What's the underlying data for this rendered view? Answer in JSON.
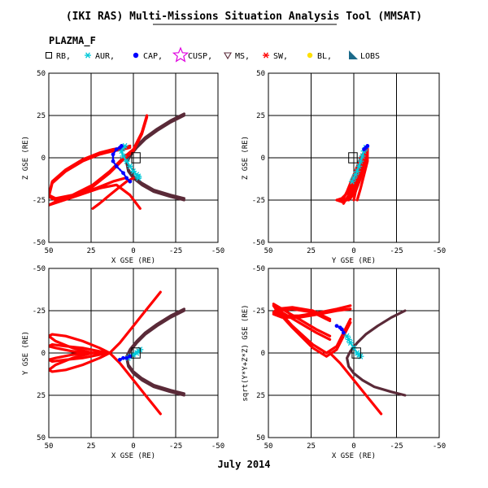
{
  "header": {
    "title": "(IKI RAS) Multi-Missions Situation Analysis Tool (MMSAT)",
    "mission": "PLAZMA_F",
    "date": "July 2014"
  },
  "legend": [
    {
      "label": "RB,",
      "marker": "square",
      "color": "#000000"
    },
    {
      "label": "AUR,",
      "marker": "asterisk",
      "color": "#00c8d8"
    },
    {
      "label": "CAP,",
      "marker": "dot",
      "color": "#0000ff"
    },
    {
      "label": "CUSP,",
      "marker": "star",
      "color": "#e000e0"
    },
    {
      "label": "MS,",
      "marker": "triangle-down",
      "color": "#5a2a38"
    },
    {
      "label": "SW,",
      "marker": "asterisk",
      "color": "#ff0000"
    },
    {
      "label": "BL,",
      "marker": "dot",
      "color": "#ffe000"
    },
    {
      "label": "LOBS",
      "marker": "triangle",
      "color": "#1a6a8a"
    }
  ],
  "chart_data": [
    {
      "type": "scatter",
      "xlabel": "X GSE (RE)",
      "ylabel": "Z GSE (RE)",
      "xlim": [
        50,
        -50
      ],
      "ylim": [
        -50,
        50
      ],
      "xticks": [
        "50",
        "25",
        "0",
        "-25",
        "-50"
      ],
      "yticks": [
        "-50",
        "-25",
        "0",
        "25",
        "50"
      ],
      "grid": true,
      "series": [
        {
          "region": "MS",
          "color": "#5a2a38",
          "x": [
            -30,
            -22,
            -14,
            -7,
            -2,
            2,
            4,
            3,
            0,
            -5,
            -12,
            -22,
            -30
          ],
          "y": [
            25,
            21,
            16,
            11,
            6,
            1,
            -3,
            -8,
            -12,
            -16,
            -20,
            -23,
            -25
          ]
        },
        {
          "region": "MS",
          "color": "#5a2a38",
          "x": [
            -30,
            -22,
            -14,
            -7,
            -2,
            2,
            4,
            3,
            0,
            -5,
            -12,
            -22,
            -30
          ],
          "y": [
            26,
            22,
            17,
            12,
            7,
            2,
            -2,
            -7,
            -11,
            -15,
            -19,
            -22,
            -24
          ]
        },
        {
          "region": "SW",
          "color": "#ff0000",
          "x": [
            2,
            6,
            12,
            20,
            30,
            40,
            48,
            50,
            46,
            36,
            24,
            14,
            6,
            0,
            -5,
            -8
          ],
          "y": [
            7,
            6,
            5,
            3,
            -1,
            -7,
            -14,
            -22,
            -24,
            -22,
            -16,
            -8,
            0,
            5,
            15,
            25
          ]
        },
        {
          "region": "SW",
          "color": "#ff0000",
          "x": [
            2,
            6,
            12,
            20,
            30,
            40,
            48,
            50,
            46,
            36,
            24,
            14,
            6,
            0,
            -5,
            -8
          ],
          "y": [
            6,
            5,
            4,
            2,
            -2,
            -8,
            -15,
            -23,
            -25,
            -23,
            -17,
            -9,
            -1,
            4,
            14,
            24
          ]
        },
        {
          "region": "SW",
          "color": "#ff0000",
          "x": [
            5,
            12,
            22,
            34,
            46,
            50,
            44,
            32,
            20,
            10,
            2,
            -4
          ],
          "y": [
            -12,
            -14,
            -18,
            -22,
            -26,
            -28,
            -26,
            -22,
            -18,
            -16,
            -22,
            -30
          ]
        },
        {
          "region": "SW",
          "color": "#ff0000",
          "x": [
            0,
            4,
            9,
            14,
            20,
            24
          ],
          "y": [
            -12,
            -14,
            -18,
            -22,
            -27,
            -30
          ]
        },
        {
          "region": "AUR",
          "color": "#00c8d8",
          "x": [
            5,
            6,
            7,
            6,
            4,
            2,
            0,
            -2,
            -3,
            -3
          ],
          "y": [
            7,
            6,
            4,
            1,
            -2,
            -5,
            -8,
            -10,
            -11,
            -12
          ]
        },
        {
          "region": "CAP",
          "color": "#0000ff",
          "x": [
            7,
            8,
            10,
            12,
            12,
            10,
            6,
            4,
            2
          ],
          "y": [
            7,
            6,
            5,
            2,
            -2,
            -5,
            -9,
            -12,
            -14
          ]
        }
      ],
      "rb_box": {
        "x": [
          -4,
          1
        ],
        "y": [
          -3,
          3
        ]
      }
    },
    {
      "type": "scatter",
      "xlabel": "Y GSE (RE)",
      "ylabel": "Z GSE (RE)",
      "xlim": [
        50,
        -50
      ],
      "ylim": [
        -50,
        50
      ],
      "xticks": [
        "50",
        "25",
        "0",
        "-25",
        "-50"
      ],
      "yticks": [
        "-50",
        "-25",
        "0",
        "25",
        "50"
      ],
      "grid": true,
      "series": [
        {
          "region": "SW",
          "color": "#ff0000",
          "x": [
            10,
            7,
            3,
            -1,
            -5,
            -7,
            -8,
            -7,
            -4,
            0,
            4,
            7,
            10
          ],
          "y": [
            -25,
            -24,
            -20,
            -13,
            -5,
            2,
            7,
            5,
            0,
            -10,
            -20,
            -26,
            -25
          ]
        },
        {
          "region": "SW",
          "color": "#ff0000",
          "x": [
            7,
            4,
            0,
            -3,
            -6,
            -8,
            -8,
            -6,
            -3,
            0,
            3,
            6
          ],
          "y": [
            -26,
            -24,
            -18,
            -10,
            -2,
            4,
            6,
            2,
            -6,
            -15,
            -22,
            -27
          ]
        },
        {
          "region": "SW",
          "color": "#ff0000",
          "x": [
            4,
            1,
            -2,
            -5,
            -7,
            -8,
            -7,
            -5,
            -2,
            1,
            3
          ],
          "y": [
            -25,
            -22,
            -15,
            -7,
            0,
            5,
            4,
            0,
            -8,
            -18,
            -25
          ]
        },
        {
          "region": "SW",
          "color": "#ff0000",
          "x": [
            2,
            -1,
            -4,
            -6,
            -8,
            -8,
            -6,
            -3,
            0,
            2
          ],
          "y": [
            -24,
            -20,
            -12,
            -4,
            3,
            6,
            2,
            -6,
            -16,
            -24
          ]
        },
        {
          "region": "SW",
          "color": "#ff0000",
          "x": [
            -2,
            -4,
            -6,
            -8,
            -8,
            -6,
            -4,
            -2,
            0
          ],
          "y": [
            -25,
            -18,
            -10,
            -2,
            5,
            3,
            -5,
            -15,
            -25
          ]
        },
        {
          "region": "AUR",
          "color": "#00c8d8",
          "x": [
            -7,
            -6,
            -5,
            -4,
            -3,
            -2,
            -1,
            0,
            1
          ],
          "y": [
            6,
            4,
            1,
            -2,
            -5,
            -8,
            -10,
            -12,
            -14
          ]
        },
        {
          "region": "CAP",
          "color": "#0000ff",
          "x": [
            -8,
            -7,
            -6
          ],
          "y": [
            7,
            6,
            5
          ]
        }
      ],
      "rb_box": {
        "x": [
          -2,
          3
        ],
        "y": [
          -3,
          3
        ]
      }
    },
    {
      "type": "scatter",
      "xlabel": "X GSE (RE)",
      "ylabel": "Y GSE (RE)",
      "xlim": [
        50,
        -50
      ],
      "ylim": [
        50,
        -50
      ],
      "xticks": [
        "50",
        "25",
        "0",
        "-25",
        "-50"
      ],
      "yticks": [
        "-50",
        "-25",
        "0",
        "25",
        "50"
      ],
      "grid": true,
      "series": [
        {
          "region": "MS",
          "color": "#5a2a38",
          "x": [
            -30,
            -22,
            -14,
            -7,
            -2,
            2,
            4,
            3,
            0,
            -5,
            -12,
            -22,
            -30
          ],
          "y": [
            -25,
            -21,
            -16,
            -11,
            -6,
            -1,
            3,
            8,
            12,
            16,
            20,
            23,
            25
          ]
        },
        {
          "region": "MS",
          "color": "#5a2a38",
          "x": [
            -30,
            -22,
            -14,
            -7,
            -2,
            2,
            4,
            3,
            0,
            -5,
            -12,
            -22,
            -30
          ],
          "y": [
            -26,
            -22,
            -17,
            -12,
            -7,
            -2,
            2,
            7,
            11,
            15,
            19,
            22,
            24
          ]
        },
        {
          "region": "SW",
          "color": "#ff0000",
          "x": [
            14,
            20,
            30,
            40,
            48,
            50,
            46,
            36,
            24,
            14
          ],
          "y": [
            0,
            -3,
            -7,
            -10,
            -11,
            -10,
            -7,
            -3,
            0,
            0
          ]
        },
        {
          "region": "SW",
          "color": "#ff0000",
          "x": [
            14,
            20,
            30,
            40,
            48,
            50,
            46,
            36,
            24,
            14
          ],
          "y": [
            0,
            -1,
            -3,
            -4,
            -5,
            -4,
            -3,
            -1,
            0,
            0
          ]
        },
        {
          "region": "SW",
          "color": "#ff0000",
          "x": [
            14,
            20,
            30,
            40,
            48,
            50,
            46,
            36,
            24,
            14
          ],
          "y": [
            0,
            1,
            3,
            4,
            5,
            4,
            3,
            1,
            0,
            0
          ]
        },
        {
          "region": "SW",
          "color": "#ff0000",
          "x": [
            14,
            20,
            30,
            40,
            48,
            50,
            46,
            36,
            24,
            14
          ],
          "y": [
            0,
            3,
            7,
            10,
            11,
            10,
            7,
            3,
            0,
            0
          ]
        },
        {
          "region": "SW",
          "color": "#ff0000",
          "x": [
            14,
            8,
            4,
            0,
            -4,
            -8,
            -12,
            -16
          ],
          "y": [
            0,
            -6,
            -11,
            -16,
            -21,
            -26,
            -31,
            -36
          ]
        },
        {
          "region": "SW",
          "color": "#ff0000",
          "x": [
            14,
            8,
            4,
            0,
            -4,
            -8,
            -12,
            -16
          ],
          "y": [
            0,
            6,
            11,
            16,
            21,
            26,
            31,
            36
          ]
        },
        {
          "region": "AUR",
          "color": "#00c8d8",
          "x": [
            -4,
            -3,
            -2,
            0,
            2,
            3
          ],
          "y": [
            -2,
            -1,
            0,
            1,
            2,
            3
          ]
        },
        {
          "region": "CAP",
          "color": "#0000ff",
          "x": [
            8,
            6,
            4,
            2
          ],
          "y": [
            4,
            3,
            3,
            2
          ]
        }
      ],
      "rb_box": {
        "x": [
          -4,
          1
        ],
        "y": [
          -3,
          3
        ]
      }
    },
    {
      "type": "scatter",
      "xlabel": "X GSE (RE)",
      "ylabel": "sqrt(Y*Y+Z*Z) GSE (RE)",
      "xlim": [
        50,
        -50
      ],
      "ylim": [
        50,
        -50
      ],
      "xticks": [
        "50",
        "25",
        "0",
        "-25",
        "-50"
      ],
      "yticks": [
        "-50",
        "-25",
        "0",
        "25",
        "50"
      ],
      "grid": true,
      "series": [
        {
          "region": "MS",
          "color": "#5a2a38",
          "x": [
            -30,
            -22,
            -14,
            -7,
            -2,
            2,
            4,
            3,
            0,
            -5,
            -12,
            -22,
            -30
          ],
          "y": [
            -25,
            -21,
            -16,
            -11,
            -6,
            -1,
            3,
            8,
            12,
            16,
            20,
            23,
            25
          ]
        },
        {
          "region": "SW",
          "color": "#ff0000",
          "x": [
            14,
            22,
            32,
            42,
            47,
            45,
            36,
            24,
            16,
            10,
            6,
            2
          ],
          "y": [
            -8,
            -12,
            -18,
            -24,
            -28,
            -25,
            -15,
            -3,
            2,
            -2,
            -10,
            -18
          ]
        },
        {
          "region": "SW",
          "color": "#ff0000",
          "x": [
            14,
            22,
            32,
            42,
            47,
            45,
            36,
            24,
            16,
            10,
            6,
            2
          ],
          "y": [
            -10,
            -14,
            -20,
            -26,
            -29,
            -26,
            -16,
            -5,
            0,
            -4,
            -12,
            -20
          ]
        },
        {
          "region": "SW",
          "color": "#ff0000",
          "x": [
            2,
            10,
            20,
            32,
            42,
            47,
            45,
            36,
            24,
            14
          ],
          "y": [
            -28,
            -26,
            -24,
            -22,
            -22,
            -24,
            -26,
            -27,
            -25,
            -20
          ]
        },
        {
          "region": "SW",
          "color": "#ff0000",
          "x": [
            2,
            10,
            20,
            32,
            42,
            47,
            45,
            36,
            24,
            14
          ],
          "y": [
            -26,
            -25,
            -23,
            -21,
            -21,
            -23,
            -25,
            -26,
            -24,
            -19
          ]
        },
        {
          "region": "SW",
          "color": "#ff0000",
          "x": [
            14,
            8,
            4,
            0,
            -4,
            -8,
            -12,
            -16
          ],
          "y": [
            0,
            6,
            11,
            16,
            21,
            26,
            31,
            36
          ]
        },
        {
          "region": "AUR",
          "color": "#00c8d8",
          "x": [
            -4,
            -3,
            -2,
            0,
            2,
            3,
            4
          ],
          "y": [
            2,
            1,
            0,
            -3,
            -6,
            -8,
            -10
          ]
        },
        {
          "region": "CAP",
          "color": "#0000ff",
          "x": [
            6,
            7,
            8,
            10
          ],
          "y": [
            -12,
            -14,
            -15,
            -16
          ]
        }
      ],
      "rb_box": {
        "x": [
          -4,
          1
        ],
        "y": [
          -3,
          3
        ]
      }
    }
  ]
}
